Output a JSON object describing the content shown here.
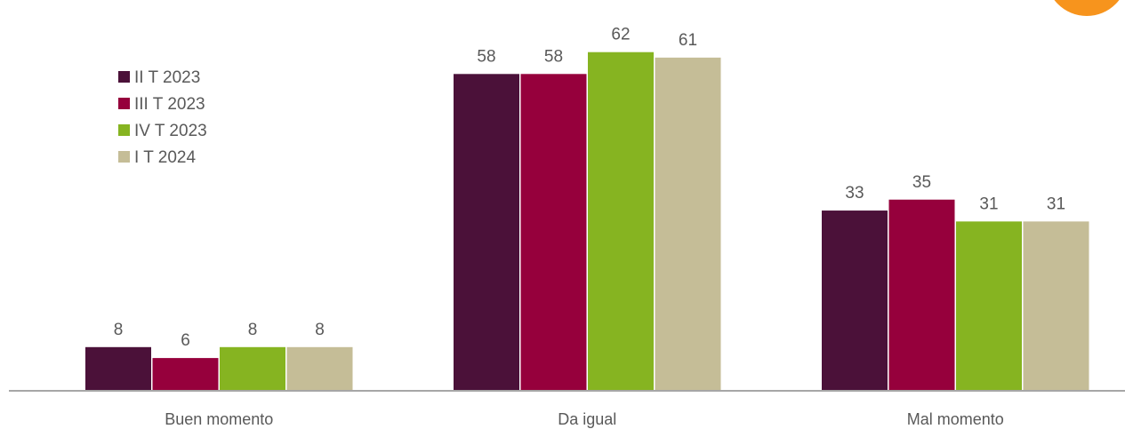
{
  "chart_data": {
    "type": "bar",
    "categories": [
      "Buen momento",
      "Da igual",
      "Mal momento"
    ],
    "series": [
      {
        "name": "II T 2023",
        "color": "#4b1139",
        "values": [
          8,
          58,
          33
        ]
      },
      {
        "name": "III T 2023",
        "color": "#96003c",
        "values": [
          6,
          58,
          35
        ]
      },
      {
        "name": "IV T 2023",
        "color": "#86b421",
        "values": [
          8,
          62,
          31
        ]
      },
      {
        "name": "I T 2024",
        "color": "#c5bd97",
        "values": [
          8,
          61,
          31
        ]
      }
    ],
    "ylim": [
      0,
      68
    ],
    "legend": "top-left",
    "grid": false,
    "accent_color": "#f7941d"
  }
}
